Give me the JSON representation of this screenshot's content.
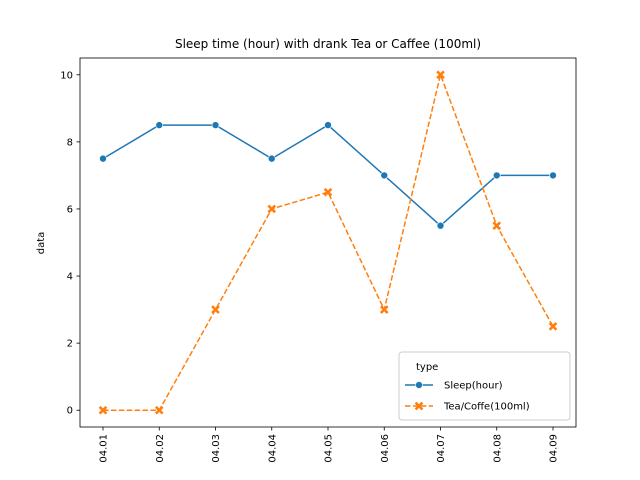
{
  "chart_data": {
    "type": "line",
    "title": "Sleep time (hour) with drank Tea or Caffee (100ml)",
    "xlabel": "",
    "ylabel": "data",
    "categories": [
      "04.01",
      "04.02",
      "04.03",
      "04.04",
      "04.05",
      "04.06",
      "04.07",
      "04.08",
      "04.09"
    ],
    "yticks": [
      0,
      2,
      4,
      6,
      8,
      10
    ],
    "ylim": [
      -0.5,
      10.5
    ],
    "grid": false,
    "legend": {
      "title": "type",
      "placement": "lower-right"
    },
    "series": [
      {
        "name": "Sleep(hour)",
        "values": [
          7.5,
          8.5,
          8.5,
          7.5,
          8.5,
          7.0,
          5.5,
          7.0,
          7.0
        ],
        "color": "#1f77b4",
        "linestyle": "solid",
        "marker": "circle"
      },
      {
        "name": "Tea/Coffe(100ml)",
        "values": [
          0,
          0,
          3,
          6,
          6.5,
          3,
          10,
          5.5,
          2.5
        ],
        "color": "#ff7f0e",
        "linestyle": "dashed",
        "marker": "x"
      }
    ]
  }
}
